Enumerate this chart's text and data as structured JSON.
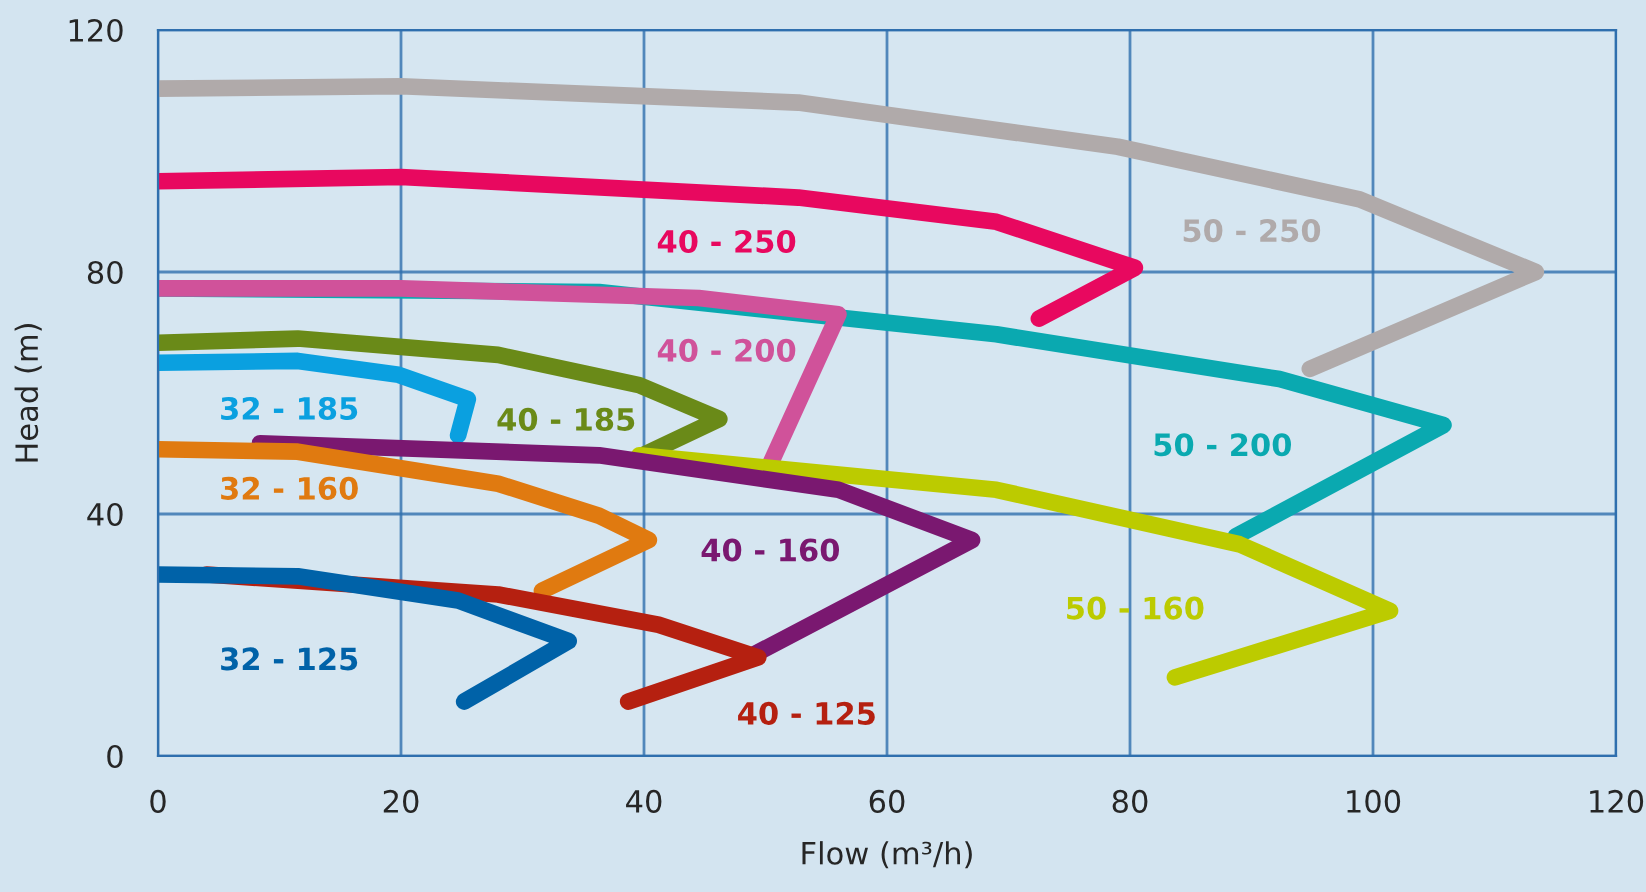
{
  "chart_data": {
    "type": "line",
    "xlabel": "Flow (m³/h)",
    "ylabel": "Head (m)",
    "xlim": [
      0,
      120
    ],
    "ylim": [
      0,
      120
    ],
    "xticks": [
      0,
      20,
      40,
      60,
      80,
      100,
      120
    ],
    "yticks": [
      0,
      40,
      80,
      120
    ],
    "grid": true,
    "legend": false,
    "marker": "none",
    "line_style": "solid",
    "series": [
      {
        "name": "50 - 250",
        "color": "#b0aaaa",
        "x": [
          0,
          20,
          52.7,
          79,
          98.9,
          113.4,
          94.8
        ],
        "values": [
          110.3,
          110.7,
          108,
          100.7,
          92,
          80,
          64
        ]
      },
      {
        "name": "40 - 250",
        "color": "#e8085f",
        "x": [
          0,
          20,
          52.7,
          69,
          80.4,
          72.5
        ],
        "values": [
          95,
          95.7,
          92.3,
          88.3,
          80.7,
          72.3
        ]
      },
      {
        "name": "50 - 200",
        "color": "#0aa9b0",
        "x": [
          0,
          36.3,
          69,
          92.3,
          105.8,
          88.7
        ],
        "values": [
          77.3,
          76.7,
          69.7,
          62.3,
          54.7,
          36.3
        ]
      },
      {
        "name": "40 - 200",
        "color": "#d0529a",
        "x": [
          0,
          20,
          44.5,
          56,
          50.4
        ],
        "values": [
          77.3,
          77.3,
          75.7,
          73,
          48.3
        ]
      },
      {
        "name": "40 - 185",
        "color": "#6a8a18",
        "x": [
          0,
          11.5,
          28,
          39.6,
          46.2,
          39.9
        ],
        "values": [
          68.3,
          69,
          66.3,
          61.3,
          55.7,
          49.7
        ]
      },
      {
        "name": "32 - 185",
        "color": "#0aa0e0",
        "x": [
          0,
          11.5,
          19.8,
          25.5,
          24.7
        ],
        "values": [
          65,
          65.3,
          63,
          59,
          53
        ]
      },
      {
        "name": "50 - 160",
        "color": "#bccb00",
        "x": [
          39.6,
          69,
          89,
          101.4,
          83.7
        ],
        "values": [
          49.7,
          44,
          35,
          24,
          13
        ]
      },
      {
        "name": "40 - 160",
        "color": "#7a1870",
        "x": [
          8.4,
          36.3,
          56,
          67,
          48.6
        ],
        "values": [
          51.7,
          49.7,
          44,
          35.7,
          16.3
        ]
      },
      {
        "name": "32 - 160",
        "color": "#e07a10",
        "x": [
          0,
          11.5,
          28,
          36.3,
          40.4,
          31.6
        ],
        "values": [
          50.7,
          50.3,
          45,
          39.7,
          35.7,
          27.3
        ]
      },
      {
        "name": "40 - 125",
        "color": "#b52010",
        "x": [
          4,
          28,
          41.2,
          49.4,
          38.7
        ],
        "values": [
          30,
          26.7,
          21.7,
          16.3,
          9
        ]
      },
      {
        "name": "32 - 125",
        "color": "#0062a8",
        "x": [
          0,
          11.5,
          24.7,
          33.8,
          25.2
        ],
        "values": [
          30,
          29.7,
          25.7,
          19,
          9
        ]
      }
    ]
  }
}
